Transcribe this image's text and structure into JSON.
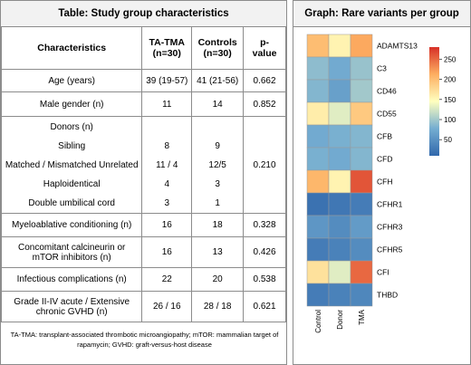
{
  "table": {
    "title": "Table: Study group characteristics",
    "headers": [
      "Characteristics",
      "TA-TMA\n(n=30)",
      "Controls\n(n=30)",
      "p-\nvalue"
    ],
    "rows": [
      {
        "label": "Age (years)",
        "tatma": "39 (19-57)",
        "controls": "41 (21-56)",
        "p": "0.662"
      },
      {
        "label": "Male gender (n)",
        "tatma": "11",
        "controls": "14",
        "p": "0.852"
      },
      {
        "label": "Myeloablative conditioning (n)",
        "tatma": "16",
        "controls": "18",
        "p": "0.328"
      },
      {
        "label": "Concomitant calcineurin or mTOR inhibitors (n)",
        "tatma": "16",
        "controls": "13",
        "p": "0.426"
      },
      {
        "label": "Infectious complications (n)",
        "tatma": "22",
        "controls": "20",
        "p": "0.538"
      },
      {
        "label": "Grade II-IV acute / Extensive chronic GVHD (n)",
        "tatma": "26 / 16",
        "controls": "28 / 18",
        "p": "0.621"
      }
    ],
    "donors": {
      "header": "Donors (n)",
      "p": "0.210",
      "items": [
        {
          "label": "Sibling",
          "tatma": "8",
          "controls": "9"
        },
        {
          "label": "Matched / Mismatched Unrelated",
          "tatma": "11 / 4",
          "controls": "12/5"
        },
        {
          "label": "Haploidentical",
          "tatma": "4",
          "controls": "3"
        },
        {
          "label": "Double umbilical cord",
          "tatma": "3",
          "controls": "1"
        }
      ]
    },
    "footnote": "TA-TMA: transplant-associated thrombotic microangiopathy; mTOR: mammalian target of rapamycin; GVHD: graft-versus-host disease"
  },
  "chart_data": {
    "type": "heatmap",
    "title": "Graph: Rare variants per group",
    "columns": [
      "Control",
      "Donor",
      "TMA"
    ],
    "rows": [
      "ADAMTS13",
      "C3",
      "CD46",
      "CD55",
      "CFB",
      "CFD",
      "CFH",
      "CFHR1",
      "CFHR3",
      "CFHR5",
      "CFI",
      "THBD"
    ],
    "values": [
      [
        200,
        155,
        215
      ],
      [
        90,
        75,
        95
      ],
      [
        85,
        65,
        100
      ],
      [
        160,
        130,
        190
      ],
      [
        75,
        80,
        85
      ],
      [
        80,
        75,
        85
      ],
      [
        205,
        155,
        260
      ],
      [
        20,
        25,
        30
      ],
      [
        55,
        45,
        60
      ],
      [
        30,
        35,
        45
      ],
      [
        170,
        130,
        250
      ],
      [
        30,
        35,
        40
      ]
    ],
    "colorbar": {
      "ticks": [
        50,
        100,
        150,
        200,
        250
      ],
      "range": [
        10,
        280
      ]
    },
    "colors": {
      "low": "#3b6fb0",
      "mid": "#ffffbf",
      "high": "#d73027"
    }
  }
}
